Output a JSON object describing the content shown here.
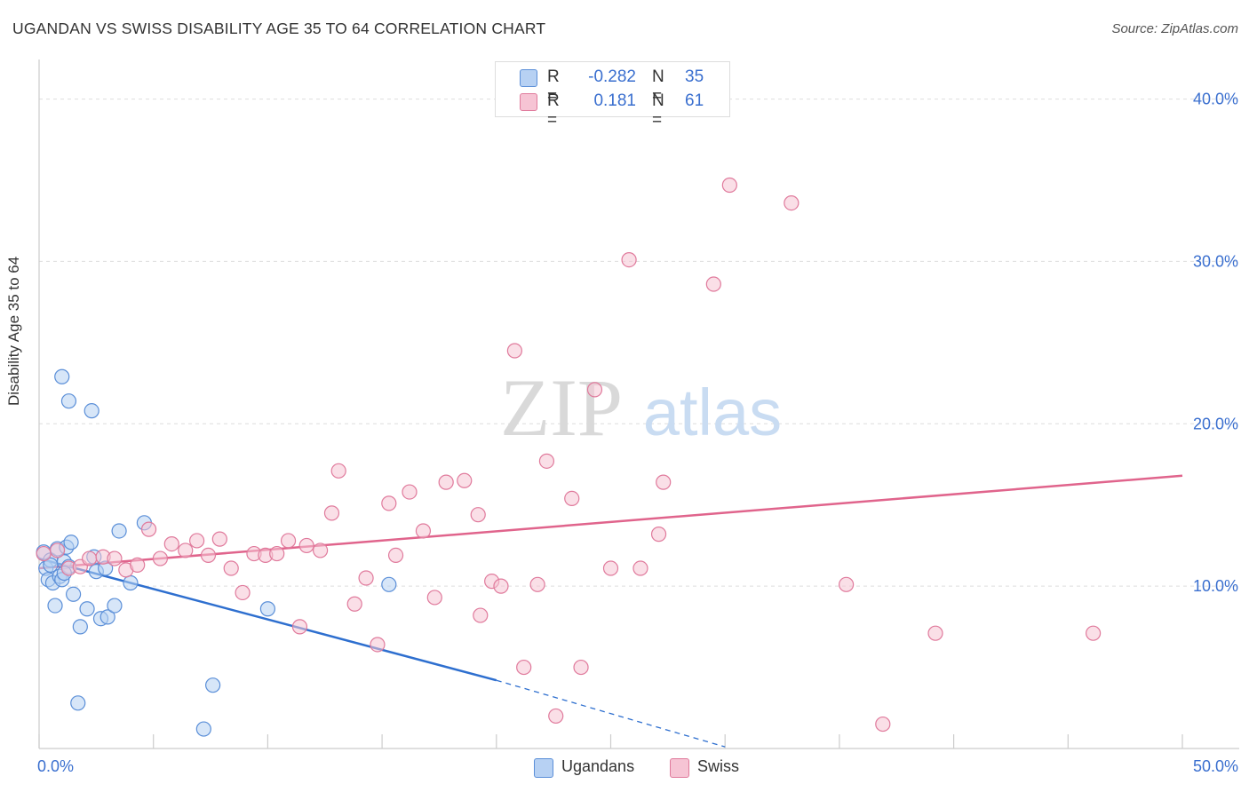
{
  "title": "UGANDAN VS SWISS DISABILITY AGE 35 TO 64 CORRELATION CHART",
  "source": "Source: ZipAtlas.com",
  "watermark": {
    "zip": "ZIP",
    "atlas": "atlas"
  },
  "colors": {
    "blue": "#5b8fd8",
    "blue_fill": "#b7d1f3",
    "blue_line": "#2e6fcf",
    "pink": "#e07a9c",
    "pink_fill": "#f6c4d4",
    "pink_line": "#e0648c",
    "tick_text": "#3a6fcf",
    "grid": "#dddddd"
  },
  "legend": {
    "rows": [
      {
        "label_r": "R =",
        "r": "-0.282",
        "label_n": "N =",
        "n": "35"
      },
      {
        "label_r": "R =",
        "r": "0.181",
        "label_n": "N =",
        "n": "61"
      }
    ]
  },
  "chart_data": {
    "type": "scatter",
    "title": "UGANDAN VS SWISS DISABILITY AGE 35 TO 64 CORRELATION CHART",
    "xlabel": "",
    "ylabel": "Disability Age 35 to 64",
    "xlim": [
      0,
      50
    ],
    "ylim": [
      0,
      42
    ],
    "x_tick_labels": [
      {
        "value": 0,
        "label": "0.0%"
      },
      {
        "value": 50,
        "label": "50.0%"
      }
    ],
    "y_ticks": [
      {
        "value": 10,
        "label": "10.0%"
      },
      {
        "value": 20,
        "label": "20.0%"
      },
      {
        "value": 30,
        "label": "30.0%"
      },
      {
        "value": 40,
        "label": "40.0%"
      }
    ],
    "series": [
      {
        "name": "Ugandans",
        "color": "blue",
        "points": [
          [
            0.2,
            12.1
          ],
          [
            0.3,
            11.1
          ],
          [
            0.4,
            10.4
          ],
          [
            0.5,
            11.6
          ],
          [
            0.6,
            10.2
          ],
          [
            0.7,
            8.8
          ],
          [
            0.8,
            12.3
          ],
          [
            0.9,
            10.6
          ],
          [
            1.0,
            10.4
          ],
          [
            1.0,
            22.9
          ],
          [
            1.1,
            11.5
          ],
          [
            1.2,
            12.4
          ],
          [
            1.3,
            11.2
          ],
          [
            1.3,
            21.4
          ],
          [
            1.4,
            12.7
          ],
          [
            1.5,
            9.5
          ],
          [
            1.7,
            2.8
          ],
          [
            1.8,
            7.5
          ],
          [
            2.1,
            8.6
          ],
          [
            2.3,
            20.8
          ],
          [
            2.4,
            11.8
          ],
          [
            2.5,
            10.9
          ],
          [
            2.7,
            8.0
          ],
          [
            2.9,
            11.1
          ],
          [
            3.0,
            8.1
          ],
          [
            3.3,
            8.8
          ],
          [
            3.5,
            13.4
          ],
          [
            4.0,
            10.2
          ],
          [
            4.6,
            13.9
          ],
          [
            7.2,
            1.2
          ],
          [
            7.6,
            3.9
          ],
          [
            10.0,
            8.6
          ],
          [
            15.3,
            10.1
          ],
          [
            0.5,
            11.3
          ],
          [
            1.1,
            10.8
          ]
        ]
      },
      {
        "name": "Swiss",
        "color": "pink",
        "points": [
          [
            0.2,
            12.0
          ],
          [
            0.8,
            12.2
          ],
          [
            1.3,
            11.1
          ],
          [
            1.8,
            11.2
          ],
          [
            2.2,
            11.7
          ],
          [
            2.8,
            11.8
          ],
          [
            3.3,
            11.7
          ],
          [
            3.8,
            11.0
          ],
          [
            4.3,
            11.3
          ],
          [
            4.8,
            13.5
          ],
          [
            5.3,
            11.7
          ],
          [
            5.8,
            12.6
          ],
          [
            6.4,
            12.2
          ],
          [
            6.9,
            12.8
          ],
          [
            7.4,
            11.9
          ],
          [
            7.9,
            12.9
          ],
          [
            8.4,
            11.1
          ],
          [
            8.9,
            9.6
          ],
          [
            9.4,
            12.0
          ],
          [
            9.9,
            11.9
          ],
          [
            10.4,
            12.0
          ],
          [
            10.9,
            12.8
          ],
          [
            11.4,
            7.5
          ],
          [
            11.7,
            12.5
          ],
          [
            12.3,
            12.2
          ],
          [
            12.8,
            14.5
          ],
          [
            13.1,
            17.1
          ],
          [
            13.8,
            8.9
          ],
          [
            14.3,
            10.5
          ],
          [
            14.8,
            6.4
          ],
          [
            15.3,
            15.1
          ],
          [
            15.6,
            11.9
          ],
          [
            16.2,
            15.8
          ],
          [
            16.8,
            13.4
          ],
          [
            17.3,
            9.3
          ],
          [
            17.8,
            16.4
          ],
          [
            18.6,
            16.5
          ],
          [
            19.2,
            14.4
          ],
          [
            19.3,
            8.2
          ],
          [
            19.8,
            10.3
          ],
          [
            20.2,
            10.0
          ],
          [
            20.8,
            24.5
          ],
          [
            21.2,
            5.0
          ],
          [
            21.8,
            10.1
          ],
          [
            22.2,
            17.7
          ],
          [
            22.6,
            2.0
          ],
          [
            23.3,
            15.4
          ],
          [
            23.7,
            5.0
          ],
          [
            24.3,
            22.1
          ],
          [
            25.0,
            11.1
          ],
          [
            25.8,
            30.1
          ],
          [
            26.3,
            11.1
          ],
          [
            27.1,
            13.2
          ],
          [
            27.3,
            16.4
          ],
          [
            29.5,
            28.6
          ],
          [
            30.2,
            34.7
          ],
          [
            32.9,
            33.6
          ],
          [
            35.3,
            10.1
          ],
          [
            36.9,
            1.5
          ],
          [
            39.2,
            7.1
          ],
          [
            46.1,
            7.1
          ]
        ]
      }
    ],
    "trend_lines": [
      {
        "series": "Ugandans",
        "x1": 0,
        "y1": 11.7,
        "x2": 20,
        "y2": 4.2,
        "dashed_to_x": 30,
        "dashed_to_y": 0.1
      },
      {
        "series": "Swiss",
        "x1": 0,
        "y1": 11.1,
        "x2": 50,
        "y2": 16.8
      }
    ]
  },
  "bottom_legend": [
    {
      "label": "Ugandans",
      "color": "blue"
    },
    {
      "label": "Swiss",
      "color": "pink"
    }
  ]
}
